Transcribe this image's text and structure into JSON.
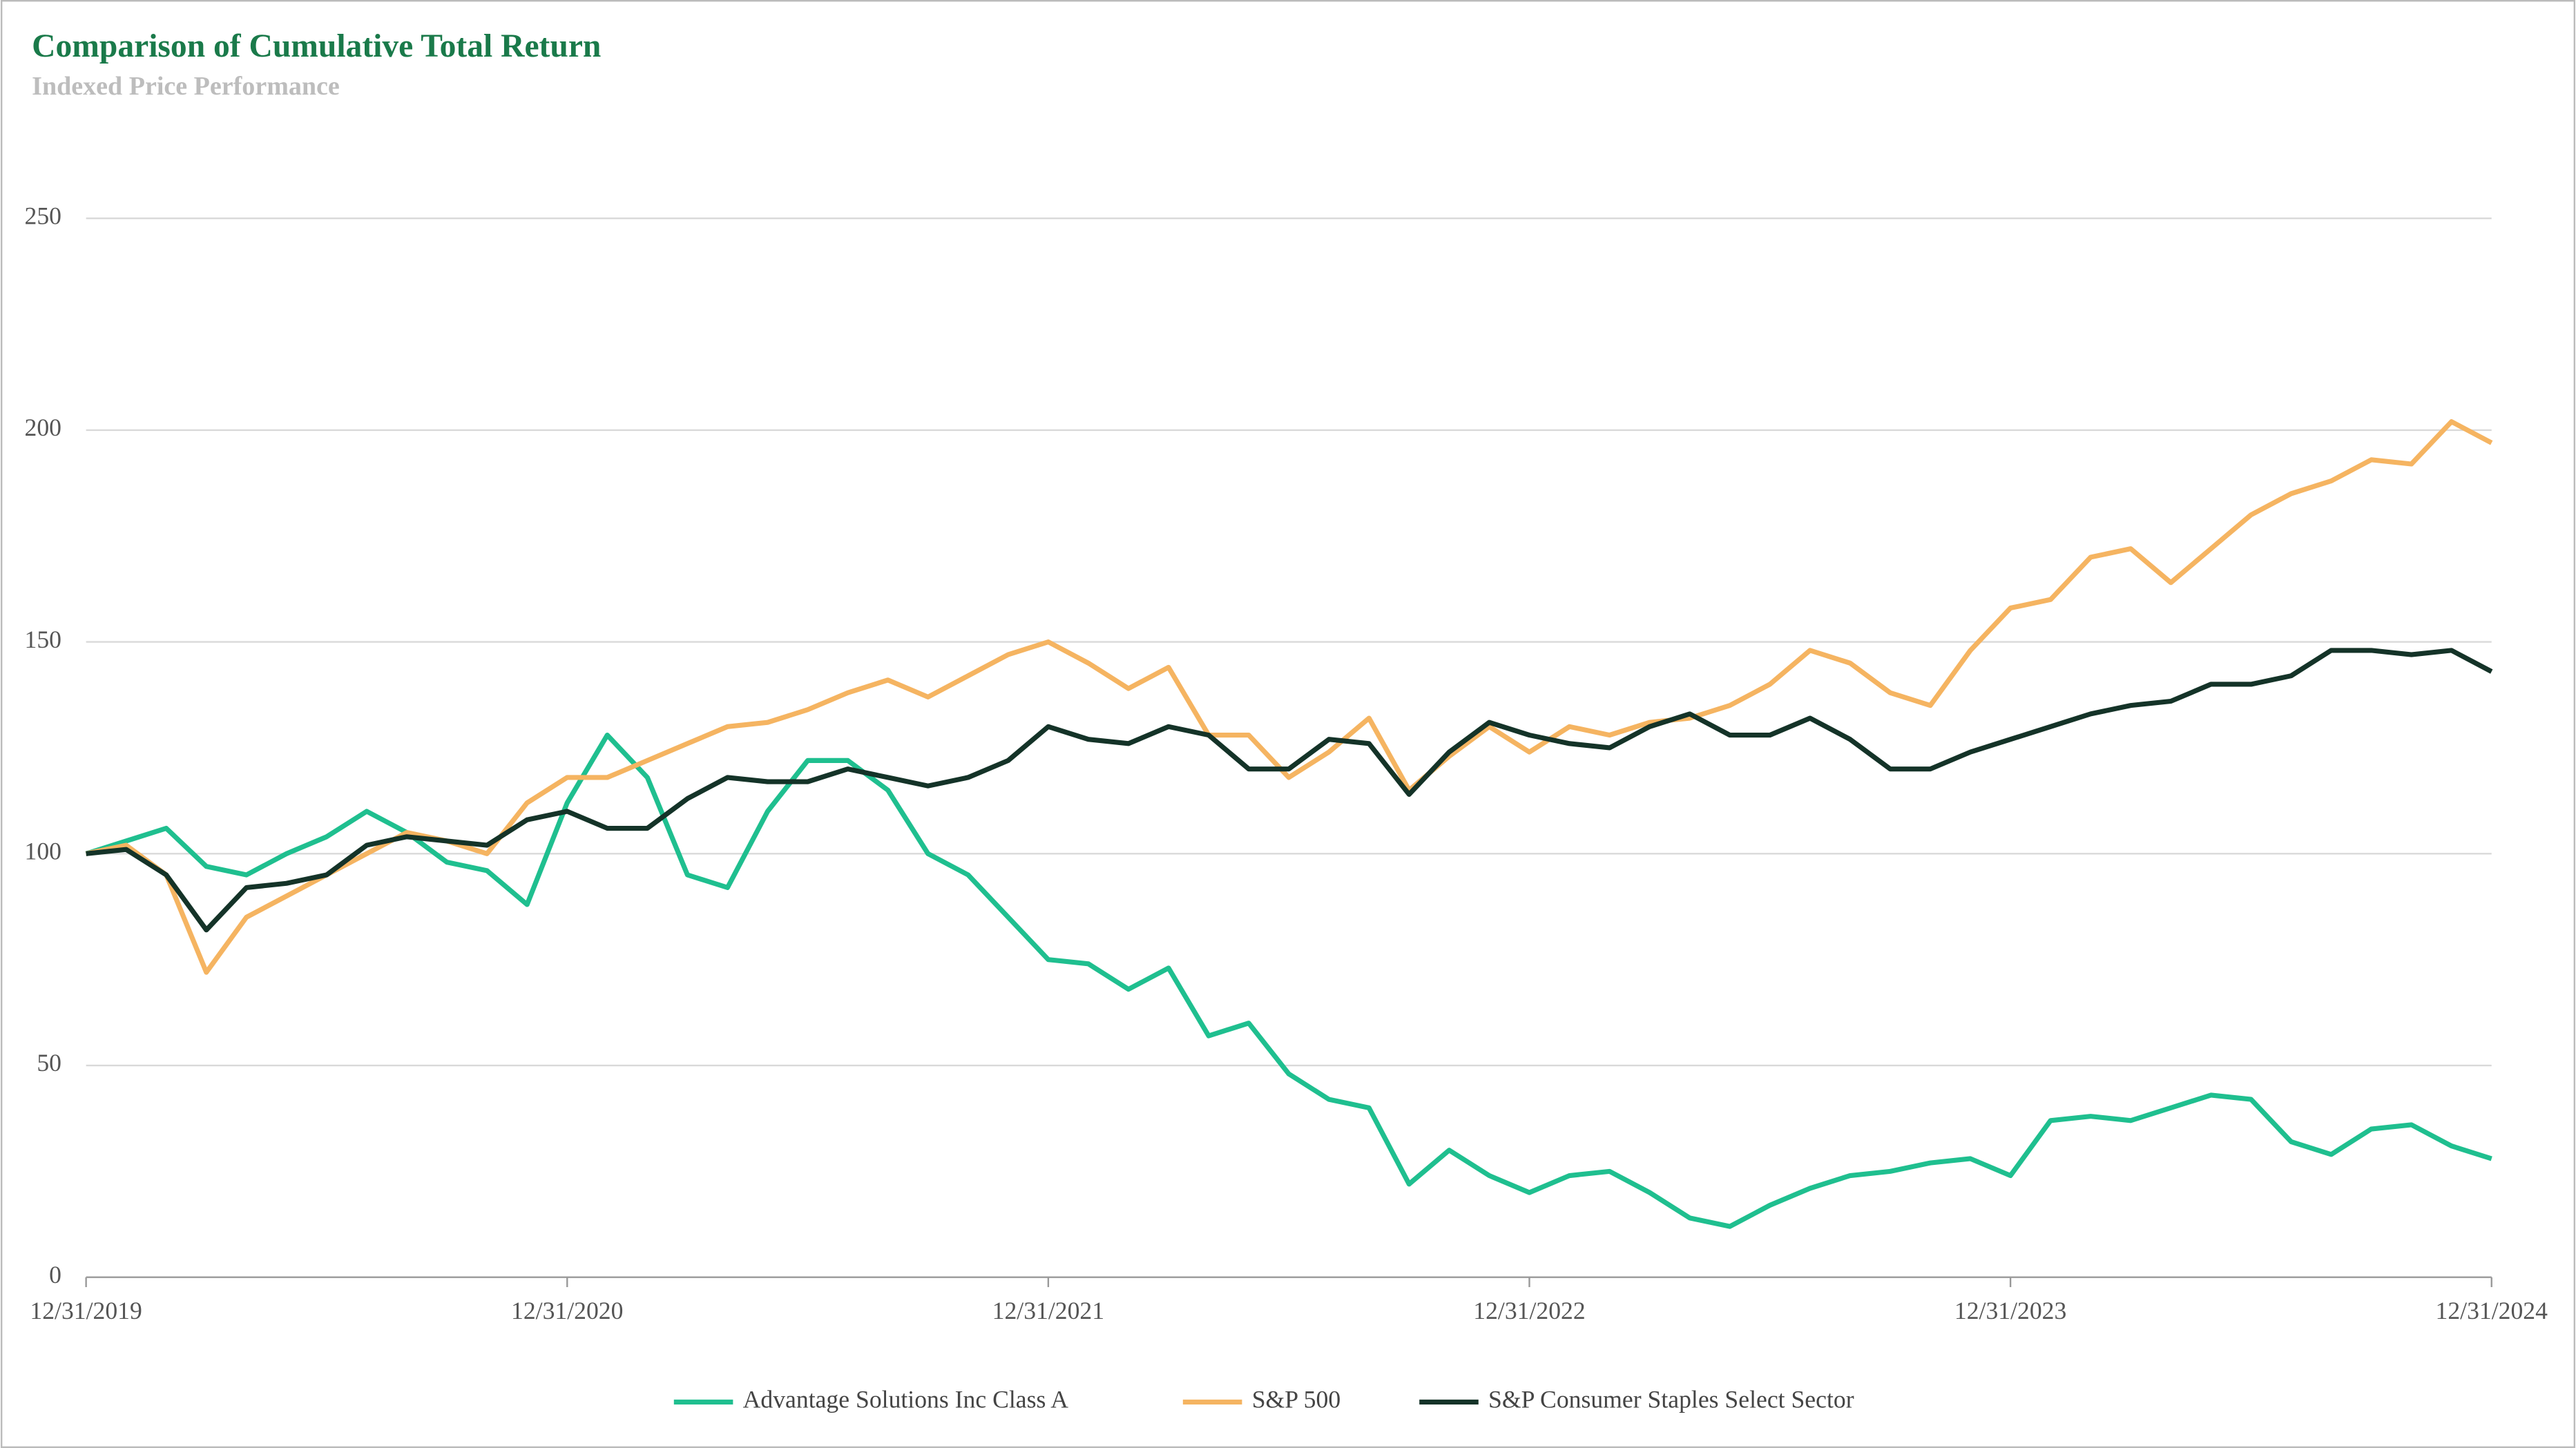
{
  "chart_data": {
    "type": "line",
    "title": "Comparison of Cumulative Total Return",
    "subtitle": "Indexed Price Performance",
    "x": [
      0,
      1,
      2,
      3,
      4,
      5,
      6,
      7,
      8,
      9,
      10,
      11,
      12,
      13,
      14,
      15,
      16,
      17,
      18,
      19,
      20,
      21,
      22,
      23,
      24,
      25,
      26,
      27,
      28,
      29,
      30,
      31,
      32,
      33,
      34,
      35,
      36,
      37,
      38,
      39,
      40,
      41,
      42,
      43,
      44,
      45,
      46,
      47,
      48,
      49,
      50,
      51,
      52,
      53,
      54,
      55,
      56,
      57,
      58,
      59,
      60
    ],
    "xlim": [
      0,
      60
    ],
    "xticks": [
      {
        "value": 0,
        "label": "12/31/2019"
      },
      {
        "value": 12,
        "label": "12/31/2020"
      },
      {
        "value": 24,
        "label": "12/31/2021"
      },
      {
        "value": 36,
        "label": "12/31/2022"
      },
      {
        "value": 48,
        "label": "12/31/2023"
      },
      {
        "value": 60,
        "label": "12/31/2024"
      }
    ],
    "ylim": [
      0,
      250
    ],
    "yticks": [
      0,
      50,
      100,
      150,
      200,
      250
    ],
    "grid": true,
    "legend": "bottom",
    "series": [
      {
        "name": "Advantage Solutions Inc Class A",
        "color": "#1fbf8f",
        "values": [
          100,
          103,
          106,
          97,
          95,
          100,
          104,
          110,
          105,
          98,
          96,
          88,
          112,
          128,
          118,
          95,
          92,
          110,
          122,
          122,
          115,
          100,
          95,
          85,
          75,
          74,
          68,
          73,
          57,
          60,
          48,
          42,
          40,
          22,
          30,
          24,
          20,
          24,
          25,
          20,
          14,
          12,
          17,
          21,
          24,
          25,
          27,
          28,
          24,
          37,
          38,
          37,
          40,
          43,
          42,
          32,
          29,
          35,
          36,
          31,
          28
        ]
      },
      {
        "name": "S&P 500",
        "color": "#f5b461",
        "values": [
          100,
          102,
          95,
          72,
          85,
          90,
          95,
          100,
          105,
          103,
          100,
          112,
          118,
          118,
          122,
          126,
          130,
          131,
          134,
          138,
          141,
          137,
          142,
          147,
          150,
          145,
          139,
          144,
          128,
          128,
          118,
          124,
          132,
          115,
          123,
          130,
          124,
          130,
          128,
          131,
          132,
          135,
          140,
          148,
          145,
          138,
          135,
          148,
          158,
          160,
          170,
          172,
          164,
          172,
          180,
          185,
          188,
          193,
          192,
          202,
          197
        ]
      },
      {
        "name": "S&P Consumer Staples Select Sector",
        "color": "#143328",
        "values": [
          100,
          101,
          95,
          82,
          92,
          93,
          95,
          102,
          104,
          103,
          102,
          108,
          110,
          106,
          106,
          113,
          118,
          117,
          117,
          120,
          118,
          116,
          118,
          122,
          130,
          127,
          126,
          130,
          128,
          120,
          120,
          127,
          126,
          114,
          124,
          131,
          128,
          126,
          125,
          130,
          133,
          128,
          128,
          132,
          127,
          120,
          120,
          124,
          127,
          130,
          133,
          135,
          136,
          140,
          140,
          142,
          148,
          148,
          147,
          148,
          143
        ]
      }
    ]
  }
}
